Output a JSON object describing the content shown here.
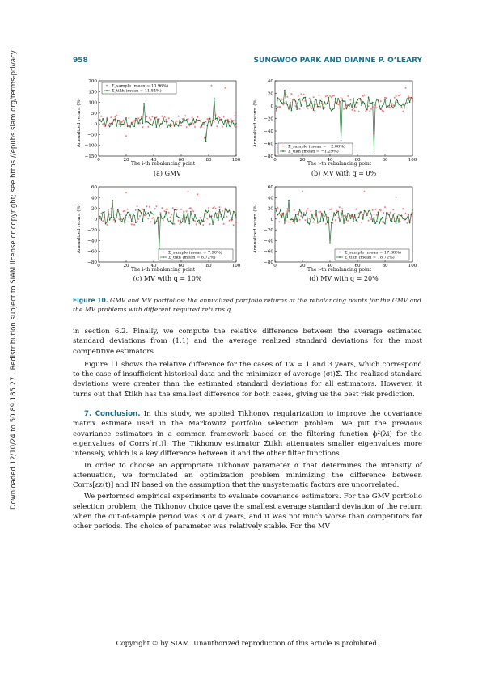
{
  "header": {
    "page_number": "958",
    "authors": "SUNGWOO PARK AND DIANNE P. O’LEARY"
  },
  "sidebar_text": "Downloaded 12/10/24 to 50.89.185.27 . Redistribution subject to SIAM license or copyright; see https://epubs.siam.org/terms-privacy",
  "colors": {
    "accent": "#1a6f8a",
    "sample": "#e8262b",
    "tikh": "#1b6b2e"
  },
  "chart_data": [
    {
      "type": "line",
      "caption": "(a) GMV",
      "ylabel": "Annualized return (%)",
      "xlabel": "The i-th rebalancing point",
      "xlim": [
        0,
        100
      ],
      "ylim": [
        -150,
        200
      ],
      "xticks": [
        0,
        20,
        40,
        60,
        80,
        100
      ],
      "yticks": [
        -150,
        -100,
        -50,
        0,
        50,
        100,
        150,
        200
      ],
      "legend_position": "top-left",
      "series": [
        {
          "name": "Σ_sample (mean = 10.96%)",
          "marker": "star",
          "seed": 11,
          "amp": 30,
          "spikes": [
            [
              33,
              140
            ],
            [
              82,
              175
            ],
            [
              92,
              165
            ],
            [
              77,
              -70
            ],
            [
              20,
              -60
            ]
          ]
        },
        {
          "name": "Σ_tikh (mean = 11.84%)",
          "marker": "dot-line",
          "seed": 13,
          "amp": 22,
          "spikes": [
            [
              84,
              120
            ],
            [
              78,
              -80
            ],
            [
              33,
              95
            ]
          ]
        }
      ]
    },
    {
      "type": "line",
      "caption": "(b) MV with q = 0%",
      "ylabel": "Annualized return (%)",
      "xlabel": "The i-th rebalancing point",
      "xlim": [
        0,
        100
      ],
      "ylim": [
        -80,
        40
      ],
      "xticks": [
        0,
        20,
        40,
        60,
        80,
        100
      ],
      "yticks": [
        -80,
        -60,
        -40,
        -20,
        0,
        20,
        40
      ],
      "legend_position": "bottom-left",
      "series": [
        {
          "name": "Σ_sample (mean = −2.08%)",
          "marker": "star",
          "seed": 21,
          "amp": 14,
          "spikes": [
            [
              72,
              -45
            ],
            [
              95,
              28
            ]
          ]
        },
        {
          "name": "Σ_tikh (mean = −1.29%)",
          "marker": "dot-line",
          "seed": 23,
          "amp": 11,
          "spikes": [
            [
              48,
              -55
            ],
            [
              72,
              -70
            ],
            [
              7,
              25
            ]
          ]
        }
      ]
    },
    {
      "type": "line",
      "caption": "(c) MV with q = 10%",
      "ylabel": "Annualized return (%)",
      "xlabel": "The i-th rebalancing point",
      "xlim": [
        0,
        100
      ],
      "ylim": [
        -80,
        60
      ],
      "xticks": [
        0,
        20,
        40,
        60,
        80,
        100
      ],
      "yticks": [
        -80,
        -60,
        -40,
        -20,
        0,
        20,
        40,
        60
      ],
      "legend_position": "bottom-right",
      "series": [
        {
          "name": "Σ_sample (mean = 7.90%)",
          "marker": "star",
          "seed": 31,
          "amp": 18,
          "spikes": [
            [
              20,
              48
            ],
            [
              65,
              50
            ],
            [
              72,
              45
            ]
          ]
        },
        {
          "name": "Σ_tikh (mean = 8.72%)",
          "marker": "dot-line",
          "seed": 33,
          "amp": 14,
          "spikes": [
            [
              44,
              -55
            ],
            [
              10,
              35
            ]
          ]
        }
      ]
    },
    {
      "type": "line",
      "caption": "(d) MV with q = 20%",
      "ylabel": "Annualized return (%)",
      "xlabel": "The i-th rebalancing point",
      "xlim": [
        0,
        100
      ],
      "ylim": [
        -80,
        60
      ],
      "xticks": [
        0,
        20,
        40,
        60,
        80,
        100
      ],
      "yticks": [
        -80,
        -60,
        -40,
        -20,
        0,
        20,
        40,
        60
      ],
      "legend_position": "bottom-right",
      "series": [
        {
          "name": "Σ_sample (mean = 17.88%)",
          "marker": "star",
          "seed": 41,
          "amp": 16,
          "spikes": [
            [
              20,
              50
            ],
            [
              65,
              50
            ],
            [
              88,
              40
            ]
          ]
        },
        {
          "name": "Σ_tikh (mean = 18.72%)",
          "marker": "dot-line",
          "seed": 43,
          "amp": 13,
          "spikes": [
            [
              40,
              -45
            ],
            [
              10,
              35
            ]
          ]
        }
      ]
    }
  ],
  "figure_caption": {
    "label": "Figure 10.",
    "text": "GMV and MV portfolios: the annualized portfolio returns at the rebalancing points for the GMV and the MV problems with different required returns q."
  },
  "paragraphs": {
    "p1": "in section 6.2. Finally, we compute the relative difference between the average estimated standard deviations from (1.1) and the average realized standard deviations for the most competitive estimators.",
    "p2": "Figure 11 shows the relative difference for the cases of Tw = 1 and 3 years, which correspond to the case of insufficient historical data and the minimizer of average (σi)Σ̂. The realized standard deviations were greater than the estimated standard deviations for all estimators. However, it turns out that Σ̂tikh has the smallest difference for both cases, giving us the best risk prediction.",
    "section_title": "7. Conclusion.",
    "p3": "In this study, we applied Tikhonov regularization to improve the covariance matrix estimate used in the Markowitz portfolio selection problem. We put the previous covariance estimators in a common framework based on the filtering function ϕ²(λi) for the eigenvalues of Corrs[r(t)]. The Tikhonov estimator Σ̂tikh attenuates smaller eigenvalues more intensely, which is a key difference between it and the other filter functions.",
    "p4": "In order to choose an appropriate Tikhonov parameter α that determines the intensity of attenuation, we formulated an optimization problem minimizing the difference between Corrs[εz(t)] and IN based on the assumption that the unsystematic factors are uncorrelated.",
    "p5": "We performed empirical experiments to evaluate covariance estimators. For the GMV portfolio selection problem, the Tikhonov choice gave the smallest average standard deviation of the return when the out-of-sample period was 3 or 4 years, and it was not much worse than competitors for other periods. The choice of parameter was relatively stable. For the MV"
  },
  "footer": "Copyright © by SIAM. Unauthorized reproduction of this article is prohibited."
}
